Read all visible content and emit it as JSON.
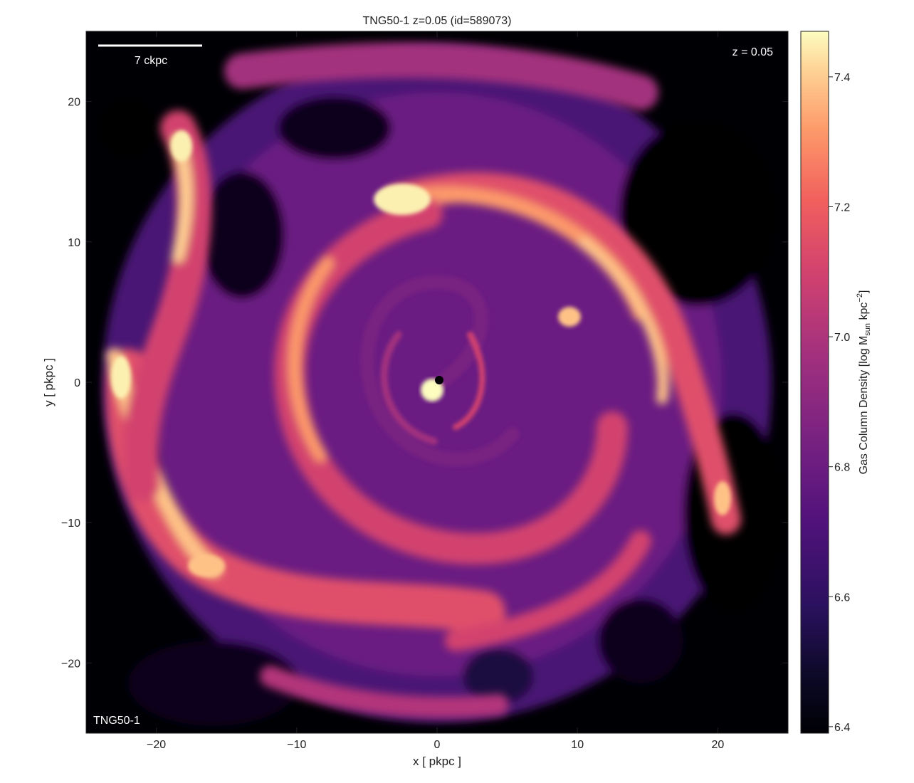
{
  "chart_data": {
    "type": "heatmap",
    "title": "TNG50-1 z=0.05 (id=589073)",
    "xlabel": "x [ pkpc ]",
    "ylabel": "y [ pkpc ]",
    "xlim": [
      -25,
      25
    ],
    "ylim": [
      -25,
      25
    ],
    "x_ticks": [
      -20,
      -10,
      0,
      10,
      20
    ],
    "y_ticks": [
      -20,
      -10,
      0,
      10,
      20
    ],
    "x_tick_labels": [
      "−20",
      "−10",
      "0",
      "10",
      "20"
    ],
    "y_tick_labels": [
      "−20",
      "−10",
      "0",
      "10",
      "20"
    ],
    "colormap": "magma",
    "colorbar": {
      "label": "Gas Column Density [log M",
      "label_sub": "sun",
      "label_mid": " kpc",
      "label_sup": "−2",
      "label_end": "]",
      "range": [
        6.39,
        7.47
      ],
      "ticks": [
        6.4,
        6.6,
        6.8,
        7.0,
        7.2,
        7.4
      ],
      "tick_labels": [
        "6.4",
        "6.6",
        "6.8",
        "7.0",
        "7.2",
        "7.4"
      ]
    },
    "annotations": {
      "scalebar_label": "7 ckpc",
      "scalebar_length_ckpc": 7,
      "redshift_label": "z = 0.05",
      "sim_label": "TNG50-1"
    }
  }
}
